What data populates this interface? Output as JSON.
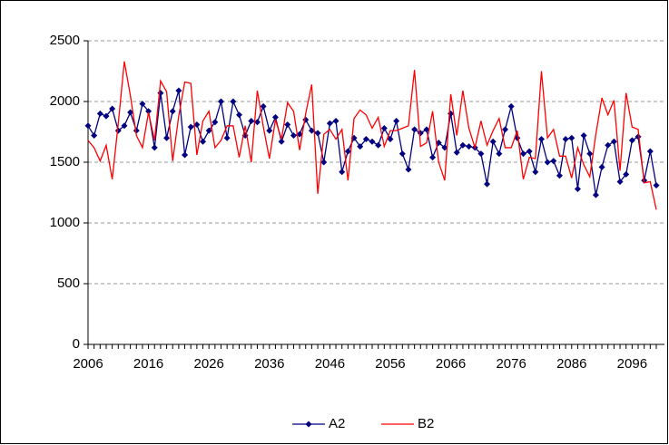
{
  "chart_data": {
    "type": "line",
    "x": [
      2006,
      2007,
      2008,
      2009,
      2010,
      2011,
      2012,
      2013,
      2014,
      2015,
      2016,
      2017,
      2018,
      2019,
      2020,
      2021,
      2022,
      2023,
      2024,
      2025,
      2026,
      2027,
      2028,
      2029,
      2030,
      2031,
      2032,
      2033,
      2034,
      2035,
      2036,
      2037,
      2038,
      2039,
      2040,
      2041,
      2042,
      2043,
      2044,
      2045,
      2046,
      2047,
      2048,
      2049,
      2050,
      2051,
      2052,
      2053,
      2054,
      2055,
      2056,
      2057,
      2058,
      2059,
      2060,
      2061,
      2062,
      2063,
      2064,
      2065,
      2066,
      2067,
      2068,
      2069,
      2070,
      2071,
      2072,
      2073,
      2074,
      2075,
      2076,
      2077,
      2078,
      2079,
      2080,
      2081,
      2082,
      2083,
      2084,
      2085,
      2086,
      2087,
      2088,
      2089,
      2090,
      2091,
      2092,
      2093,
      2094,
      2095,
      2096,
      2097,
      2098,
      2099,
      2100
    ],
    "series": [
      {
        "name": "A2",
        "color": "#000080",
        "marker": "diamond",
        "values": [
          1800,
          1720,
          1900,
          1880,
          1940,
          1760,
          1800,
          1910,
          1760,
          1980,
          1920,
          1620,
          2070,
          1700,
          1920,
          2090,
          1560,
          1790,
          1810,
          1670,
          1760,
          1830,
          2000,
          1700,
          2000,
          1890,
          1720,
          1840,
          1830,
          1960,
          1760,
          1870,
          1670,
          1810,
          1720,
          1730,
          1850,
          1760,
          1740,
          1500,
          1820,
          1840,
          1420,
          1590,
          1700,
          1630,
          1690,
          1670,
          1640,
          1780,
          1690,
          1840,
          1570,
          1440,
          1770,
          1740,
          1770,
          1540,
          1660,
          1620,
          1900,
          1580,
          1640,
          1630,
          1620,
          1570,
          1320,
          1670,
          1570,
          1770,
          1960,
          1700,
          1570,
          1590,
          1420,
          1690,
          1500,
          1510,
          1390,
          1690,
          1700,
          1280,
          1720,
          1570,
          1230,
          1460,
          1640,
          1670,
          1340,
          1400,
          1680,
          1710,
          1350,
          1590,
          1310
        ]
      },
      {
        "name": "B2",
        "color": "#ff0000",
        "values": [
          1680,
          1620,
          1510,
          1640,
          1360,
          1820,
          2330,
          2050,
          1720,
          1620,
          1910,
          1680,
          2170,
          2080,
          1510,
          1880,
          2160,
          2150,
          1560,
          1840,
          1920,
          1620,
          1680,
          1800,
          1800,
          1540,
          1800,
          1500,
          2090,
          1790,
          1530,
          1850,
          1690,
          1990,
          1920,
          1600,
          1900,
          2140,
          1240,
          1730,
          1770,
          1690,
          1770,
          1350,
          1860,
          1930,
          1890,
          1780,
          1870,
          1630,
          1760,
          1760,
          1780,
          1800,
          2260,
          1630,
          1660,
          1920,
          1500,
          1350,
          2060,
          1720,
          2090,
          1780,
          1620,
          1840,
          1640,
          1760,
          1860,
          1620,
          1620,
          1760,
          1360,
          1540,
          1530,
          2250,
          1700,
          1770,
          1550,
          1550,
          1370,
          1620,
          1480,
          1380,
          1730,
          2030,
          1890,
          2010,
          1430,
          2070,
          1790,
          1770,
          1330,
          1340,
          1110
        ]
      }
    ],
    "xlim": [
      2006,
      2100
    ],
    "xticks": [
      2006,
      2016,
      2026,
      2036,
      2046,
      2056,
      2066,
      2076,
      2086,
      2096
    ],
    "ylim": [
      0,
      2500
    ],
    "yticks": [
      0,
      500,
      1000,
      1500,
      2000,
      2500
    ],
    "grid": true,
    "legend": "bottom"
  }
}
